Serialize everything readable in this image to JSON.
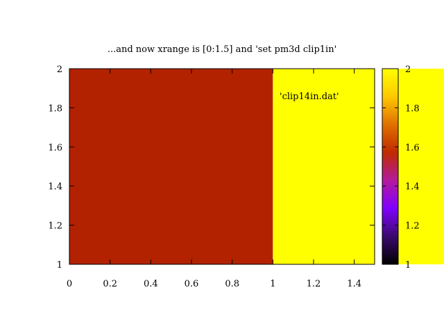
{
  "chart_data": {
    "type": "heatmap",
    "title": "...and now xrange is [0:1.5] and 'set pm3d clip1in'",
    "xlabel": "",
    "ylabel": "",
    "xlim": [
      0,
      1.5
    ],
    "ylim": [
      1,
      2
    ],
    "x_ticks": [
      "0",
      "0.2",
      "0.4",
      "0.6",
      "0.8",
      "1",
      "1.2",
      "1.4"
    ],
    "y_ticks": [
      "1",
      "1.2",
      "1.4",
      "1.6",
      "1.8",
      "2"
    ],
    "legend": {
      "label": "'clip14in.dat'",
      "placement": "top-right"
    },
    "regions": [
      {
        "x0": 0,
        "x1": 1,
        "y0": 1,
        "y1": 2,
        "value": 1.5,
        "color": "#b22200"
      },
      {
        "x0": 1,
        "x1": 1.5,
        "y0": 1,
        "y1": 2,
        "value": 2,
        "color": "#ffff00"
      }
    ],
    "colorbar": {
      "range": [
        1,
        2
      ],
      "ticks": [
        "1",
        "1.2",
        "1.4",
        "1.6",
        "1.8",
        "2"
      ],
      "palette": [
        "#000000",
        "#3b0a6e",
        "#8000ff",
        "#b41a9c",
        "#c02a00",
        "#e07000",
        "#ffc800",
        "#ffff00"
      ]
    }
  }
}
